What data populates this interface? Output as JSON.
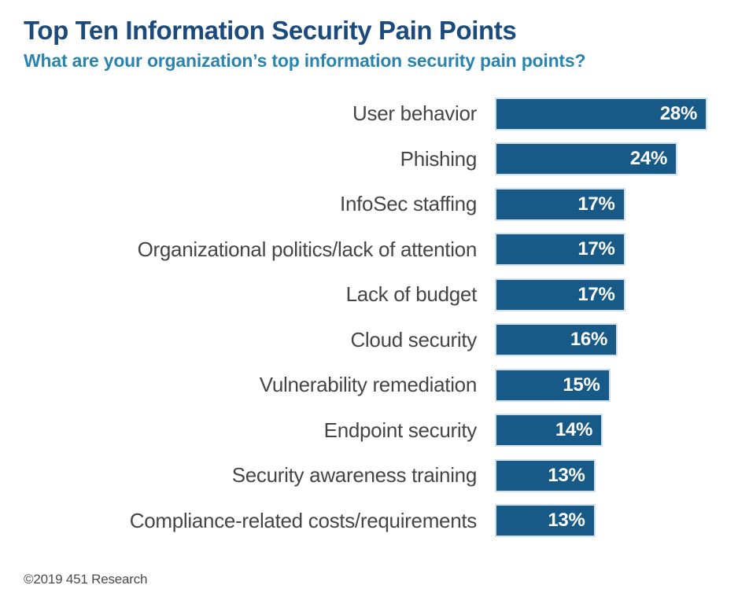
{
  "header": {
    "title": "Top Ten Information Security Pain Points",
    "subtitle": "What are your organization’s top information security pain points?",
    "title_color": "#1b4b7d",
    "subtitle_color": "#2a84ae"
  },
  "footer": {
    "source": "©2019 451 Research"
  },
  "chart_data": {
    "type": "bar",
    "orientation": "horizontal",
    "title": "Top Ten Information Security Pain Points",
    "subtitle": "What are your organization’s top information security pain points?",
    "source": "©2019 451 Research",
    "categories": [
      "User behavior",
      "Phishing",
      "InfoSec staffing",
      "Organizational politics/lack of attention",
      "Lack of budget",
      "Cloud security",
      "Vulnerability remediation",
      "Endpoint security",
      "Security awareness training",
      "Compliance-related costs/requirements"
    ],
    "values": [
      28,
      24,
      17,
      17,
      17,
      16,
      15,
      14,
      13,
      13
    ],
    "value_suffix": "%",
    "value_labels": [
      "28%",
      "24%",
      "17%",
      "17%",
      "17%",
      "16%",
      "15%",
      "14%",
      "13%",
      "13%"
    ],
    "xlim": [
      0,
      28
    ],
    "grid": false,
    "legend": false,
    "bar_color": "#175a87",
    "bar_outline_color": "#cfdfeb",
    "value_label_color": "#ffffff",
    "category_label_color": "#454545"
  }
}
